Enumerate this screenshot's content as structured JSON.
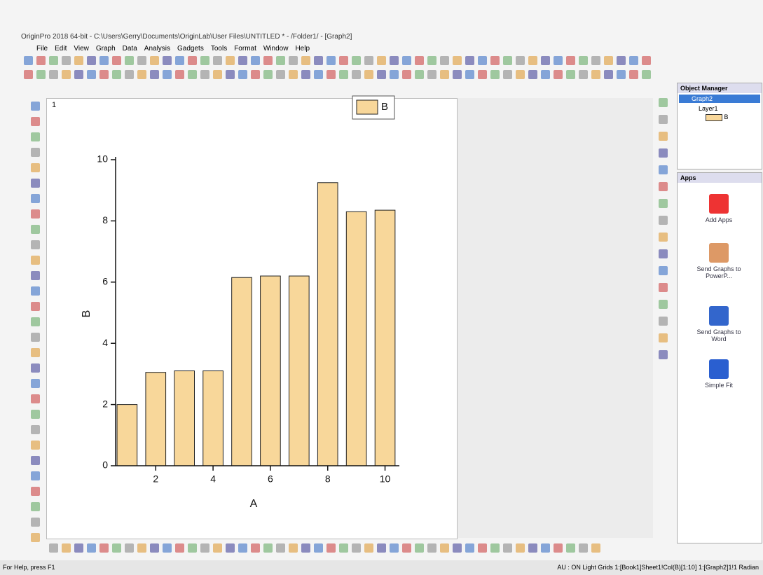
{
  "window": {
    "title": "OriginPro 2018 64-bit - C:\\Users\\Gerry\\Documents\\OriginLab\\User Files\\UNTITLED * - /Folder1/ - [Graph2]",
    "menu": [
      "File",
      "Edit",
      "View",
      "Graph",
      "Data",
      "Analysis",
      "Gadgets",
      "Tools",
      "Format",
      "Window",
      "Help"
    ]
  },
  "layer_label": "1",
  "chart_data": {
    "type": "bar",
    "x": [
      1,
      2,
      3,
      4,
      5,
      6,
      7,
      8,
      9,
      10
    ],
    "series": [
      {
        "name": "B",
        "color": "#f8d79a",
        "values": [
          2.0,
          3.05,
          3.1,
          3.1,
          6.15,
          6.2,
          6.2,
          9.25,
          8.3,
          8.35
        ]
      }
    ],
    "xlabel": "A",
    "ylabel": "B",
    "xlim": [
      0.6,
      10.5
    ],
    "xticks": [
      2,
      4,
      6,
      8,
      10
    ],
    "ylim": [
      0,
      10
    ],
    "yticks": [
      0,
      2,
      4,
      6,
      8,
      10
    ],
    "legend": "top-right"
  },
  "object_manager": {
    "title": "Object Manager",
    "items": [
      "Graph2",
      "Layer1",
      "B"
    ]
  },
  "apps": {
    "title": "Apps",
    "items": [
      "Add Apps",
      "Send Graphs to PowerP...",
      "Send Graphs to Word",
      "Simple Fit"
    ]
  },
  "status": {
    "help": "For Help, press F1",
    "info": "AU : ON  Light Grids  1:[Book1]Sheet1!Col(B)[1:10]  1:[Graph2]1!1  Radian"
  }
}
